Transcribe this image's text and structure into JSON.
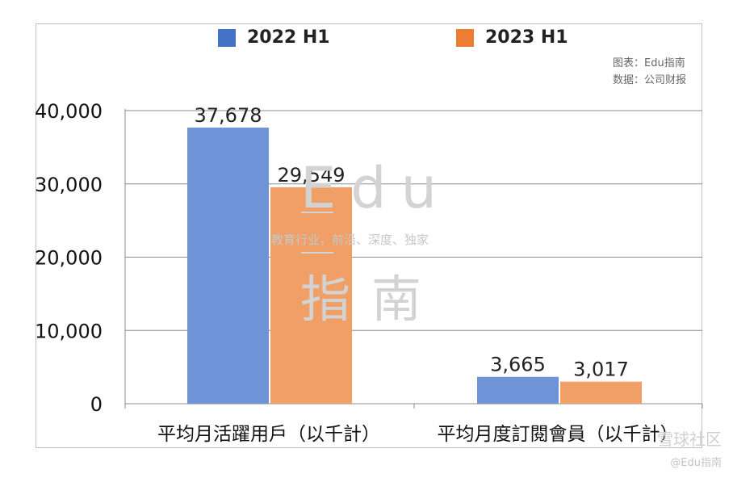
{
  "chart_data": {
    "type": "bar",
    "categories": [
      "平均月活躍用戶（以千計）",
      "平均月度訂閱會員（以千計）"
    ],
    "series": [
      {
        "name": "2022 H1",
        "values": [
          37678,
          3665
        ],
        "labels": [
          "37,678",
          "3,665"
        ],
        "color": "#6e93d6"
      },
      {
        "name": "2023 H1",
        "values": [
          29549,
          3017
        ],
        "labels": [
          "29,549",
          "3,017"
        ],
        "color": "#f0a066"
      }
    ],
    "yticks": [
      "0",
      "10,000",
      "20,000",
      "30,000",
      "40,000"
    ],
    "ylim": [
      0,
      40000
    ],
    "grid": true,
    "legend": "top"
  },
  "legend_colors": {
    "s1": "#4472c4",
    "s2": "#ed7d31"
  },
  "source": {
    "line1": "图表：Edu指南",
    "line2": "数据：公司财报"
  },
  "watermark": {
    "edu": "Edu",
    "tagline": "教育行业，前沿、深度、独家",
    "zhinan": "指南",
    "corner_top": "雪球社区",
    "corner_bottom": "@Edu指南"
  }
}
